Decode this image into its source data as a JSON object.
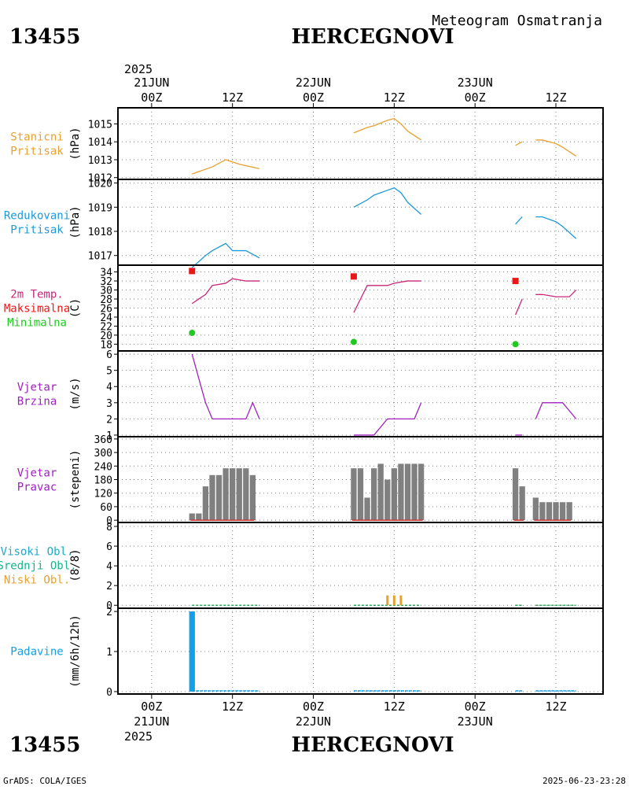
{
  "header": {
    "station_id": "13455",
    "station_name": "HERCEGNOVI",
    "subtitle": "Meteogram Osmatranja"
  },
  "footer": {
    "station_id": "13455",
    "station_name": "HERCEGNOVI",
    "credit": "GrADS: COLA/IGES",
    "timestamp": "2025-06-23-23:28"
  },
  "time_axis": {
    "range_hours": [
      -5,
      67
    ],
    "top_year": "2025",
    "bottom_year": "2025",
    "ticks": [
      {
        "h": 0,
        "label": "00Z",
        "date": "21JUN"
      },
      {
        "h": 12,
        "label": "12Z",
        "date": ""
      },
      {
        "h": 24,
        "label": "00Z",
        "date": "22JUN"
      },
      {
        "h": 36,
        "label": "12Z",
        "date": ""
      },
      {
        "h": 48,
        "label": "00Z",
        "date": "23JUN"
      },
      {
        "h": 60,
        "label": "12Z",
        "date": ""
      }
    ]
  },
  "colors": {
    "pressure": "#e8a030",
    "reduced": "#1e9ad6",
    "temp_line": "#c8287a",
    "max": "#e81818",
    "min": "#22c822",
    "wind": "#a020c0",
    "bars": "#808080",
    "low_cloud": "#e8a030",
    "precip": "#14a0e6",
    "grid": "#808080",
    "cloud_high": "#1eaac8",
    "cloud_mid": "#14b48c"
  },
  "chart_data": [
    {
      "type": "line",
      "id": "station_pressure",
      "labels": [
        "Stanicni",
        "Pritisak"
      ],
      "label_color": "#e8a030",
      "ylabel": "(hPa)",
      "ylim": [
        1011.9,
        1015.9
      ],
      "yticks": [
        1012,
        1013,
        1014,
        1015
      ],
      "series": [
        {
          "name": "Stanicni Pritisak",
          "segments": [
            [
              [
                6,
                1012.2
              ],
              [
                9,
                1012.6
              ],
              [
                11,
                1013.0
              ],
              [
                13,
                1012.75
              ],
              [
                16,
                1012.5
              ]
            ],
            [
              [
                30,
                1014.5
              ],
              [
                32,
                1014.8
              ],
              [
                33,
                1014.9
              ],
              [
                35,
                1015.2
              ],
              [
                36,
                1015.3
              ],
              [
                37,
                1015.0
              ],
              [
                38,
                1014.6
              ],
              [
                40,
                1014.1
              ]
            ],
            [
              [
                54,
                1013.8
              ],
              [
                55,
                1014.0
              ]
            ],
            [
              [
                57,
                1014.1
              ],
              [
                58,
                1014.1
              ],
              [
                60,
                1013.9
              ],
              [
                61,
                1013.7
              ],
              [
                63,
                1013.2
              ]
            ]
          ]
        }
      ]
    },
    {
      "type": "line",
      "id": "reduced_pressure",
      "labels": [
        "Redukovani",
        "Pritisak"
      ],
      "label_color": "#1e9ad6",
      "ylabel": "(hPa)",
      "ylim": [
        1016.6,
        1020.15
      ],
      "yticks": [
        1017,
        1018,
        1019,
        1020
      ],
      "series": [
        {
          "name": "Redukovani Pritisak",
          "segments": [
            [
              [
                6,
                1016.5
              ],
              [
                8,
                1017.0
              ],
              [
                9,
                1017.2
              ],
              [
                11,
                1017.5
              ],
              [
                12,
                1017.2
              ],
              [
                14,
                1017.2
              ],
              [
                16,
                1016.9
              ]
            ],
            [
              [
                30,
                1019.0
              ],
              [
                32,
                1019.3
              ],
              [
                33,
                1019.5
              ],
              [
                35,
                1019.7
              ],
              [
                36,
                1019.8
              ],
              [
                37,
                1019.6
              ],
              [
                38,
                1019.2
              ],
              [
                40,
                1018.7
              ]
            ],
            [
              [
                54,
                1018.3
              ],
              [
                55,
                1018.6
              ]
            ],
            [
              [
                57,
                1018.6
              ],
              [
                58,
                1018.6
              ],
              [
                60,
                1018.4
              ],
              [
                61,
                1018.2
              ],
              [
                63,
                1017.7
              ]
            ]
          ]
        }
      ]
    },
    {
      "type": "line",
      "id": "temperature",
      "labels": [
        "2m Temp.",
        "Maksimalna",
        "Minimalna"
      ],
      "label_colors": [
        "#c8287a",
        "#e81818",
        "#22c822"
      ],
      "ylabel": "(C)",
      "ylim": [
        16.5,
        35.5
      ],
      "yticks": [
        18,
        20,
        22,
        24,
        26,
        28,
        30,
        32,
        34
      ],
      "series": [
        {
          "name": "2m Temp.",
          "segments": [
            [
              [
                6,
                27
              ],
              [
                8,
                29
              ],
              [
                9,
                31
              ],
              [
                11,
                31.5
              ],
              [
                12,
                32.5
              ],
              [
                14,
                32
              ],
              [
                16,
                32
              ]
            ],
            [
              [
                30,
                25
              ],
              [
                32,
                31
              ],
              [
                35,
                31
              ],
              [
                36,
                31.5
              ],
              [
                38,
                32
              ],
              [
                40,
                32
              ]
            ],
            [
              [
                54,
                24.5
              ],
              [
                55,
                28
              ]
            ],
            [
              [
                57,
                29
              ],
              [
                58,
                29
              ],
              [
                60,
                28.5
              ],
              [
                61,
                28.5
              ],
              [
                62,
                28.5
              ],
              [
                63,
                30
              ]
            ]
          ]
        }
      ],
      "max_points": [
        [
          6,
          34.2
        ],
        [
          30,
          33.0
        ],
        [
          54,
          32.0
        ]
      ],
      "min_points": [
        [
          6,
          20.5
        ],
        [
          30,
          18.5
        ],
        [
          54,
          18.0
        ]
      ]
    },
    {
      "type": "line",
      "id": "wind_speed",
      "labels": [
        "Vjetar",
        "Brzina"
      ],
      "label_color": "#a020c0",
      "ylabel": "(m/s)",
      "ylim": [
        0.9,
        6.2
      ],
      "yticks": [
        1,
        2,
        3,
        4,
        5,
        6
      ],
      "series": [
        {
          "name": "Vjetar Brzina",
          "segments": [
            [
              [
                6,
                6
              ],
              [
                8,
                3
              ],
              [
                9,
                2
              ],
              [
                11,
                2
              ],
              [
                13,
                2
              ],
              [
                14,
                2
              ],
              [
                15,
                3
              ],
              [
                16,
                2
              ]
            ],
            [
              [
                30,
                1
              ],
              [
                32,
                1
              ],
              [
                33,
                1
              ],
              [
                35,
                2
              ],
              [
                37,
                2
              ],
              [
                38,
                2
              ],
              [
                39,
                2
              ],
              [
                40,
                3
              ]
            ],
            [
              [
                54,
                1
              ],
              [
                55,
                1
              ]
            ],
            [
              [
                57,
                2
              ],
              [
                58,
                3
              ],
              [
                60,
                3
              ],
              [
                61,
                3
              ],
              [
                63,
                2
              ]
            ]
          ]
        }
      ]
    },
    {
      "type": "bar",
      "id": "wind_direction",
      "labels": [
        "Vjetar",
        "Pravac"
      ],
      "label_color": "#a020c0",
      "ylabel": "(stepeni)",
      "ylim": [
        -10,
        370
      ],
      "yticks": [
        0,
        60,
        120,
        180,
        240,
        300,
        360
      ],
      "bar_width_h": 0.85,
      "x": [
        6,
        7,
        8,
        9,
        10,
        11,
        12,
        13,
        14,
        15,
        30,
        31,
        32,
        33,
        34,
        35,
        36,
        37,
        38,
        39,
        40,
        54,
        55,
        57,
        58,
        59,
        60,
        61,
        62
      ],
      "values": [
        30,
        30,
        150,
        200,
        200,
        230,
        230,
        230,
        230,
        200,
        230,
        230,
        100,
        230,
        250,
        180,
        230,
        250,
        250,
        250,
        250,
        230,
        150,
        100,
        80,
        80,
        80,
        80,
        80
      ]
    },
    {
      "type": "bar",
      "id": "cloud_cover",
      "labels": [
        "Visoki Obl.",
        "Srednji Obl.",
        "Niski Obl."
      ],
      "label_colors": [
        "#1eaac8",
        "#14b48c",
        "#e8a030"
      ],
      "ylabel": "(8/8)",
      "ylim": [
        -0.3,
        8.4
      ],
      "yticks": [
        0,
        2,
        4,
        6,
        8
      ],
      "series": [
        {
          "name": "Niski Obl.",
          "x": [
            35,
            36,
            37
          ],
          "values": [
            1,
            1,
            1
          ]
        }
      ]
    },
    {
      "type": "bar",
      "id": "precipitation",
      "labels": [
        "Padavine"
      ],
      "label_color": "#14a0e6",
      "ylabel": "(mm/6h/12h)",
      "ylim": [
        -0.06,
        2.08
      ],
      "yticks": [
        0,
        1,
        2
      ],
      "x": [
        6
      ],
      "values": [
        2
      ]
    }
  ]
}
